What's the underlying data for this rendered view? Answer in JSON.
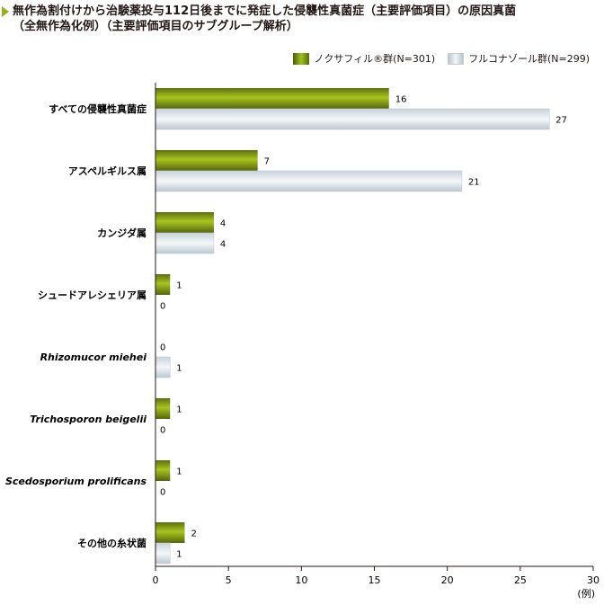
{
  "title": {
    "line1": "無作為割付けから治験薬投与112日後までに発症した侵襲性真菌症（主要評価項目）の原因真菌",
    "line2": "（全無作為化例）（主要評価項目のサブグループ解析）"
  },
  "legend": {
    "series_a": "ノクサフィル®群(N=301)",
    "series_b": "フルコナゾール群(N=299)"
  },
  "colors": {
    "series_a": "#8da716",
    "series_b": "#e4ebf0"
  },
  "chart_data": {
    "type": "bar",
    "orientation": "horizontal",
    "categories": [
      "すべての侵襲性真菌症",
      "アスペルギルス属",
      "カンジダ属",
      "シュードアレシェリア属",
      "Rhizomucor miehei",
      "Trichosporon beigelii",
      "Scedosporium prolificans",
      "その他の糸状菌"
    ],
    "italic_categories": [
      4,
      5,
      6
    ],
    "series": [
      {
        "name": "ノクサフィル®群(N=301)",
        "values": [
          16,
          7,
          4,
          1,
          0,
          1,
          1,
          2
        ]
      },
      {
        "name": "フルコナゾール群(N=299)",
        "values": [
          27,
          21,
          4,
          0,
          1,
          0,
          0,
          1
        ]
      }
    ],
    "xlim": [
      0,
      30
    ],
    "xticks": [
      0,
      5,
      10,
      15,
      20,
      25,
      30
    ],
    "xunit": "(例)",
    "grid": false
  }
}
